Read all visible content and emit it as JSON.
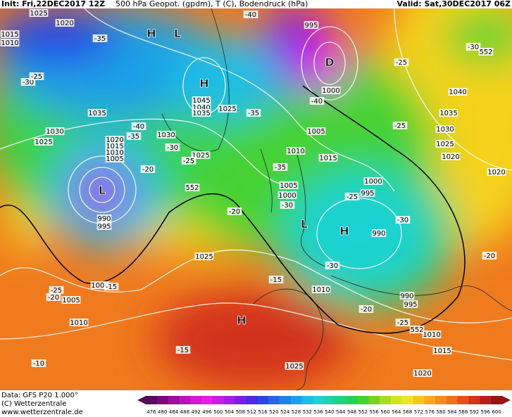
{
  "header": {
    "init": "Init: Fri,22DEC2017 12Z",
    "title": "500 hPa Geopot. (gpdm), T (C), Bodendruck (hPa)",
    "valid": "Valid: Sat,30DEC2017 06Z"
  },
  "footer": {
    "data": "Data: GFS P20 1.000°",
    "copyright": "(C) Wetterzentrale",
    "url": "www.wetterzentrale.de"
  },
  "colorbar": {
    "labels": [
      "476",
      "480",
      "484",
      "488",
      "492",
      "496",
      "500",
      "504",
      "508",
      "512",
      "516",
      "520",
      "524",
      "528",
      "532",
      "536",
      "540",
      "544",
      "548",
      "552",
      "556",
      "560",
      "564",
      "568",
      "572",
      "576",
      "580",
      "584",
      "588",
      "592",
      "596",
      "600"
    ],
    "colors": [
      "#5a0a5a",
      "#7a0a7a",
      "#9a109a",
      "#b814b8",
      "#d218d2",
      "#e61ee6",
      "#c81ee6",
      "#a01ee6",
      "#7a1ee6",
      "#5028e6",
      "#2846e6",
      "#2864e6",
      "#1e82e6",
      "#1ea0e6",
      "#1ebee6",
      "#1ed2d2",
      "#1ed2aa",
      "#1ed282",
      "#28d25a",
      "#46d232",
      "#7ad21e",
      "#aadc1e",
      "#d2e61e",
      "#f0e61e",
      "#f5c81e",
      "#f5aa1e",
      "#f58c1e",
      "#f0701e",
      "#e6501e",
      "#d2321e",
      "#b91e1e",
      "#961414"
    ]
  },
  "map_labels": [
    "H",
    "L",
    "H",
    "D",
    "L",
    "L",
    "H",
    "H",
    "1025",
    "1020",
    "1015",
    "1010",
    "995",
    "1000",
    "1045",
    "1040",
    "1035",
    "1025",
    "1035",
    "1030",
    "1025",
    "1020",
    "1015",
    "1010",
    "1005",
    "1030",
    "1025",
    "1005",
    "1010",
    "1015",
    "1005",
    "1000",
    "1000",
    "995",
    "990",
    "990",
    "995",
    "1010",
    "1040",
    "1035",
    "1030",
    "1025",
    "1020",
    "1020",
    "1025",
    "1000",
    "1005",
    "1010",
    "1025",
    "1015",
    "1020",
    "990",
    "995",
    "1010",
    "-35",
    "-30",
    "-25",
    "-40",
    "-35",
    "-40",
    "-30",
    "-25",
    "-25",
    "-40",
    "-35",
    "-30",
    "-25",
    "-20",
    "-35",
    "-30",
    "-25",
    "-30",
    "-30",
    "-20",
    "-15",
    "-25",
    "-20",
    "-15",
    "-15",
    "-10",
    "-20",
    "-25",
    "-20",
    "552",
    "552",
    "552"
  ]
}
